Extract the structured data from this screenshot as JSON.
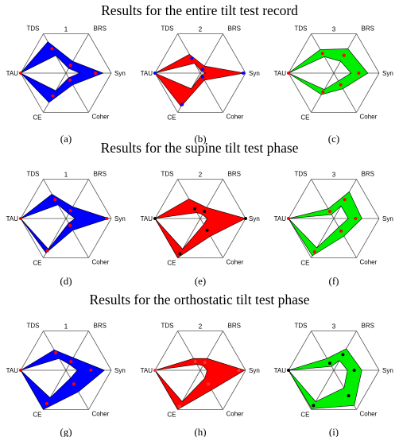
{
  "chart_data": {
    "type": "radar",
    "axes": [
      "BRS",
      "Syn",
      "Coher",
      "CE",
      "TAU",
      "TDS"
    ],
    "sections": [
      {
        "title": "Results for the entire tilt test record",
        "panels": [
          {
            "caption": "(a)",
            "number": "1",
            "color": "#0000ff",
            "marker": "#ff0000",
            "outer": [
              0.3,
              0.82,
              0.3,
              0.75,
              1.0,
              0.8
            ],
            "inner": [
              0.12,
              0.3,
              0.12,
              0.45,
              1.0,
              0.45
            ],
            "points": [
              0.2,
              0.65,
              0.18,
              0.58,
              1.0,
              0.62
            ]
          },
          {
            "caption": "(b)",
            "number": "2",
            "color": "#ff0000",
            "marker": "#0000ff",
            "outer": [
              0.18,
              0.98,
              0.18,
              0.85,
              1.0,
              0.48
            ],
            "inner": [
              0.05,
              0.12,
              0.05,
              0.4,
              1.0,
              0.25
            ],
            "points": [
              0.1,
              0.95,
              0.1,
              0.8,
              1.0,
              0.38
            ]
          },
          {
            "caption": "(c)",
            "number": "3",
            "color": "#00ee00",
            "marker": "#ff0000",
            "outer": [
              0.62,
              0.75,
              0.4,
              0.55,
              1.0,
              0.6
            ],
            "inner": [
              0.3,
              0.38,
              0.2,
              0.42,
              1.0,
              0.42
            ],
            "points": [
              0.45,
              0.55,
              0.3,
              0.48,
              1.0,
              0.5
            ]
          }
        ]
      },
      {
        "title": "Results for the supine tilt test phase",
        "panels": [
          {
            "caption": "(d)",
            "number": "1",
            "color": "#0000ff",
            "marker": "#ff0000",
            "outer": [
              0.3,
              0.95,
              0.3,
              0.88,
              1.0,
              0.62
            ],
            "inner": [
              0.12,
              0.2,
              0.12,
              0.78,
              1.0,
              0.35
            ],
            "points": [
              0.2,
              0.9,
              0.18,
              0.82,
              1.0,
              0.48
            ]
          },
          {
            "caption": "(e)",
            "number": "2",
            "color": "#ff0000",
            "marker": "#000000",
            "outer": [
              0.28,
              1.0,
              0.45,
              1.0,
              1.0,
              0.5
            ],
            "inner": [
              0.1,
              0.15,
              0.15,
              0.78,
              1.0,
              0.15
            ],
            "points": [
              0.18,
              1.0,
              0.3,
              0.9,
              1.0,
              0.25
            ]
          },
          {
            "caption": "(f)",
            "number": "3",
            "color": "#00ee00",
            "marker": "#ff0000",
            "outer": [
              0.68,
              0.62,
              0.45,
              0.95,
              1.0,
              0.25
            ],
            "inner": [
              0.32,
              0.32,
              0.22,
              0.75,
              1.0,
              0.1
            ],
            "points": [
              0.48,
              0.48,
              0.32,
              0.85,
              1.0,
              0.18
            ]
          }
        ]
      },
      {
        "title": "Results for the orthostatic tilt test phase",
        "panels": [
          {
            "caption": "(g)",
            "number": "1",
            "color": "#0000ff",
            "marker": "#ff0000",
            "outer": [
              0.32,
              0.85,
              0.55,
              1.0,
              1.0,
              0.52
            ],
            "inner": [
              0.15,
              0.25,
              0.2,
              0.7,
              1.0,
              0.3
            ],
            "points": [
              0.22,
              0.55,
              0.35,
              0.85,
              1.0,
              0.45
            ]
          },
          {
            "caption": "(h)",
            "number": "2",
            "color": "#ff0000",
            "marker": "#ff3333",
            "outer": [
              0.3,
              0.98,
              0.5,
              1.0,
              1.0,
              0.3
            ],
            "inner": [
              0.12,
              0.15,
              0.2,
              0.8,
              1.0,
              0.15
            ],
            "points": [
              0.2,
              0.85,
              0.35,
              0.92,
              1.0,
              0.22
            ]
          },
          {
            "caption": "(i)",
            "number": "3",
            "color": "#00ee00",
            "marker": "#000000",
            "outer": [
              0.55,
              0.62,
              0.9,
              0.98,
              1.0,
              0.3
            ],
            "inner": [
              0.25,
              0.3,
              0.45,
              0.8,
              1.0,
              0.1
            ],
            "points": [
              0.4,
              0.45,
              0.65,
              0.9,
              1.0,
              0.18
            ]
          }
        ]
      }
    ]
  }
}
